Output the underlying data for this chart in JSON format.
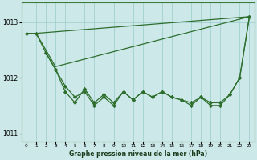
{
  "title": "Graphe pression niveau de la mer (hPa)",
  "bg_color": "#cce8e8",
  "grid_color": "#99cccc",
  "line_color": "#2d6e2d",
  "xlim": [
    -0.5,
    23.5
  ],
  "ylim": [
    1010.85,
    1013.35
  ],
  "yticks": [
    1011,
    1012,
    1013
  ],
  "xtick_labels": [
    "0",
    "1",
    "2",
    "3",
    "4",
    "5",
    "6",
    "7",
    "8",
    "9",
    "10",
    "11",
    "12",
    "13",
    "14",
    "15",
    "16",
    "17",
    "18",
    "19",
    "20",
    "21",
    "22",
    "23"
  ],
  "line1_x": [
    0,
    1,
    23
  ],
  "line1_y": [
    1012.8,
    1012.8,
    1013.1
  ],
  "line2_x": [
    0,
    1,
    2,
    3,
    23
  ],
  "line2_y": [
    1012.8,
    1012.8,
    1012.5,
    1012.2,
    1013.1
  ],
  "line3_x": [
    0,
    1,
    2,
    3,
    4,
    5,
    6,
    7,
    8,
    9,
    10,
    11,
    12,
    13,
    14,
    15,
    16,
    17,
    18,
    19,
    20,
    21,
    22,
    23
  ],
  "line3_y": [
    1012.8,
    1012.8,
    1012.45,
    1012.15,
    1011.85,
    1011.65,
    1011.75,
    1011.5,
    1011.65,
    1011.5,
    1011.75,
    1011.6,
    1011.75,
    1011.65,
    1011.75,
    1011.65,
    1011.6,
    1011.5,
    1011.65,
    1011.5,
    1011.5,
    1011.7,
    1012.0,
    1013.1
  ],
  "line4_x": [
    2,
    3,
    4,
    5,
    6,
    7,
    8,
    9,
    10,
    11,
    12,
    13,
    14,
    15,
    16,
    17,
    18,
    19,
    20,
    21,
    22,
    23
  ],
  "line4_y": [
    1012.45,
    1012.15,
    1011.75,
    1011.55,
    1011.8,
    1011.55,
    1011.7,
    1011.55,
    1011.75,
    1011.6,
    1011.75,
    1011.65,
    1011.75,
    1011.65,
    1011.6,
    1011.55,
    1011.65,
    1011.55,
    1011.55,
    1011.7,
    1012.0,
    1013.1
  ]
}
